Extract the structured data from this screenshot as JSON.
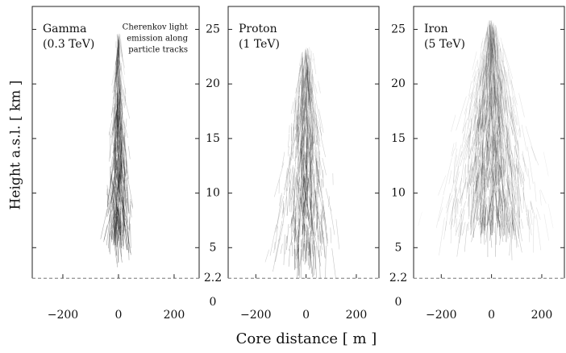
{
  "axis_labels": {
    "x": "Core distance [ m ]",
    "y": "Height a.s.l. [ km ]"
  },
  "chart_data": [
    {
      "type": "image",
      "title": [
        "Gamma",
        "(0.3 TeV)"
      ],
      "annotation": [
        "Cherenkov light",
        "emission along",
        "particle tracks"
      ],
      "xlim": [
        -310,
        290
      ],
      "xticks": [
        {
          "value": -200,
          "label": "−200"
        },
        0,
        200
      ],
      "ylim": [
        0,
        27.1
      ],
      "yticks": [
        0,
        2.2,
        5,
        10,
        15,
        20,
        25
      ],
      "observation_level": 2.2
    },
    {
      "type": "image",
      "title": [
        "Proton",
        "(1 TeV)"
      ],
      "xlim": [
        -310,
        290
      ],
      "xticks": [
        {
          "value": -200,
          "label": "−200"
        },
        0,
        200
      ],
      "ylim": [
        0,
        27.1
      ],
      "yticks": [
        0,
        2.2,
        5,
        10,
        15,
        20,
        25
      ],
      "observation_level": 2.2
    },
    {
      "type": "image",
      "title": [
        "Iron",
        "(5 TeV)"
      ],
      "xlim": [
        -310,
        290
      ],
      "xticks": [
        {
          "value": -200,
          "label": "−200"
        },
        0,
        200
      ],
      "ylim": [
        0,
        27.1
      ],
      "yticks": [
        0,
        2.2,
        5,
        10,
        15,
        20,
        25
      ],
      "observation_level": 2.2
    }
  ]
}
